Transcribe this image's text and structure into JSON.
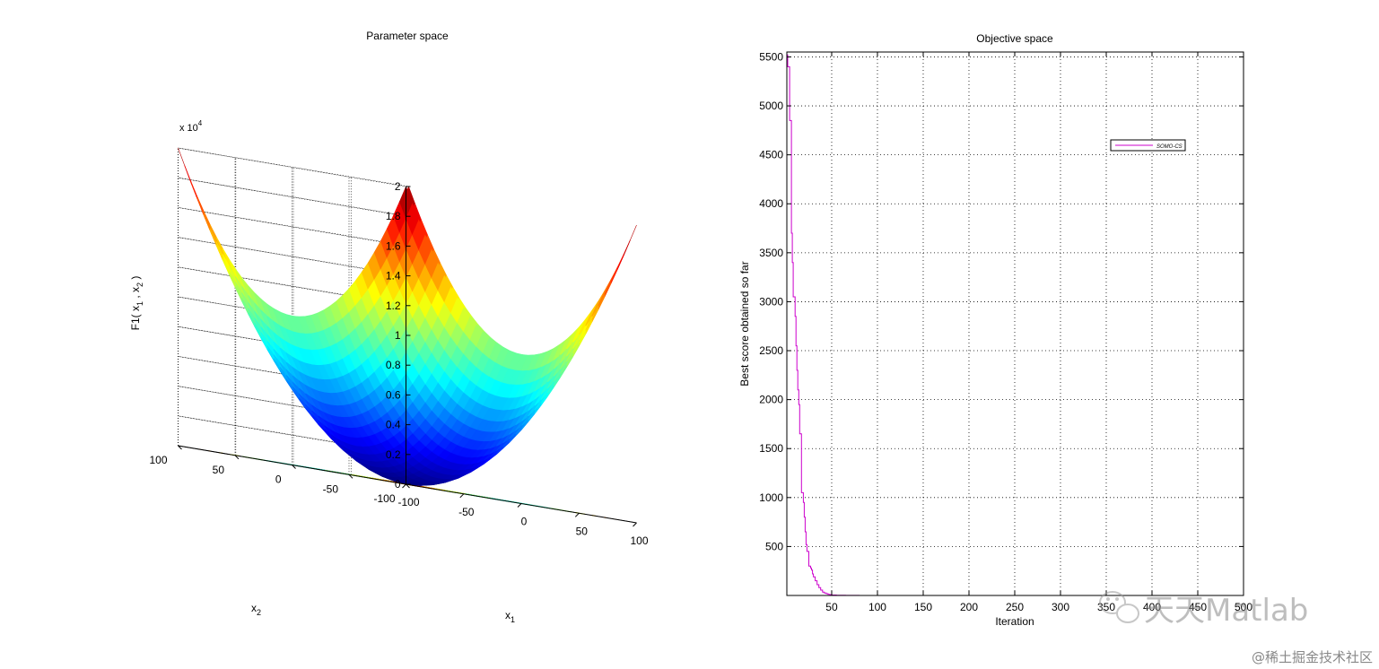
{
  "figure": {
    "left_panel": {
      "title": "Parameter space",
      "zlabel_base": "F1( x",
      "zlabel_sub1": "1",
      "zlabel_mid": " , x",
      "zlabel_sub2": "2",
      "zlabel_end": " )",
      "exponent_base": "x 10",
      "exponent_power": "4",
      "x1_label": "x",
      "x1_sub": "1",
      "x2_label": "x",
      "x2_sub": "2"
    },
    "right_panel": {
      "title": "Objective space",
      "xlabel": "Iteration",
      "ylabel": "Best score obtained so far",
      "legend": "SOMO-CS"
    },
    "watermark": {
      "text": "天天Matlab",
      "site": "@稀土掘金技术社区"
    },
    "colors": {
      "curve": "#cc00cc",
      "grid": "#000000",
      "axis": "#000000"
    }
  },
  "chart_data": [
    {
      "type": "surface",
      "title": "Parameter space",
      "function": "F1 = x1^2 + x2^2",
      "x1_range": [
        -100,
        100
      ],
      "x2_range": [
        -100,
        100
      ],
      "z_range": [
        0,
        20000
      ],
      "z_multiplier": "x 10^4",
      "z_ticks": [
        "0",
        "0.2",
        "0.4",
        "0.6",
        "0.8",
        "1",
        "1.2",
        "1.4",
        "1.6",
        "1.8",
        "2"
      ],
      "x1_ticks": [
        "-100",
        "-50",
        "0",
        "50",
        "100"
      ],
      "x2_ticks": [
        "-100",
        "-50",
        "0",
        "50",
        "100"
      ],
      "contour_levels": [
        1500,
        3000,
        4500,
        6000,
        7500,
        9000,
        10500,
        12000,
        13500,
        15000,
        16500,
        18000
      ],
      "colormap": "jet",
      "grid": true
    },
    {
      "type": "line",
      "title": "Objective space",
      "xlabel": "Iteration",
      "ylabel": "Best score obtained so far",
      "xlim": [
        1,
        500
      ],
      "ylim": [
        0,
        5550
      ],
      "xticks": [
        50,
        100,
        150,
        200,
        250,
        300,
        350,
        400,
        450,
        500
      ],
      "yticks": [
        500,
        1000,
        1500,
        2000,
        2500,
        3000,
        3500,
        4000,
        4500,
        5000,
        5500
      ],
      "legend_location": "upper-right",
      "grid": true,
      "series": [
        {
          "name": "SOMO-CS",
          "x": [
            1,
            2,
            3,
            4,
            5,
            6,
            7,
            8,
            9,
            10,
            11,
            12,
            13,
            14,
            15,
            16,
            17,
            18,
            19,
            20,
            21,
            22,
            23,
            24,
            25,
            26,
            27,
            28,
            29,
            30,
            32,
            34,
            36,
            38,
            40,
            42,
            44,
            46,
            48,
            50,
            55,
            60,
            65,
            70,
            80,
            100,
            150,
            200,
            300,
            400,
            500
          ],
          "y": [
            5520,
            5400,
            5400,
            4850,
            4850,
            3700,
            3400,
            3050,
            3050,
            2850,
            2550,
            2300,
            2100,
            1950,
            1650,
            1650,
            1050,
            1050,
            950,
            800,
            650,
            520,
            450,
            450,
            300,
            300,
            280,
            260,
            220,
            190,
            150,
            110,
            80,
            55,
            35,
            25,
            18,
            12,
            8,
            5,
            3,
            2,
            1,
            0.5,
            0.3,
            0.1,
            0.02,
            0.01,
            0.005,
            0.002,
            0.001
          ]
        }
      ]
    }
  ]
}
